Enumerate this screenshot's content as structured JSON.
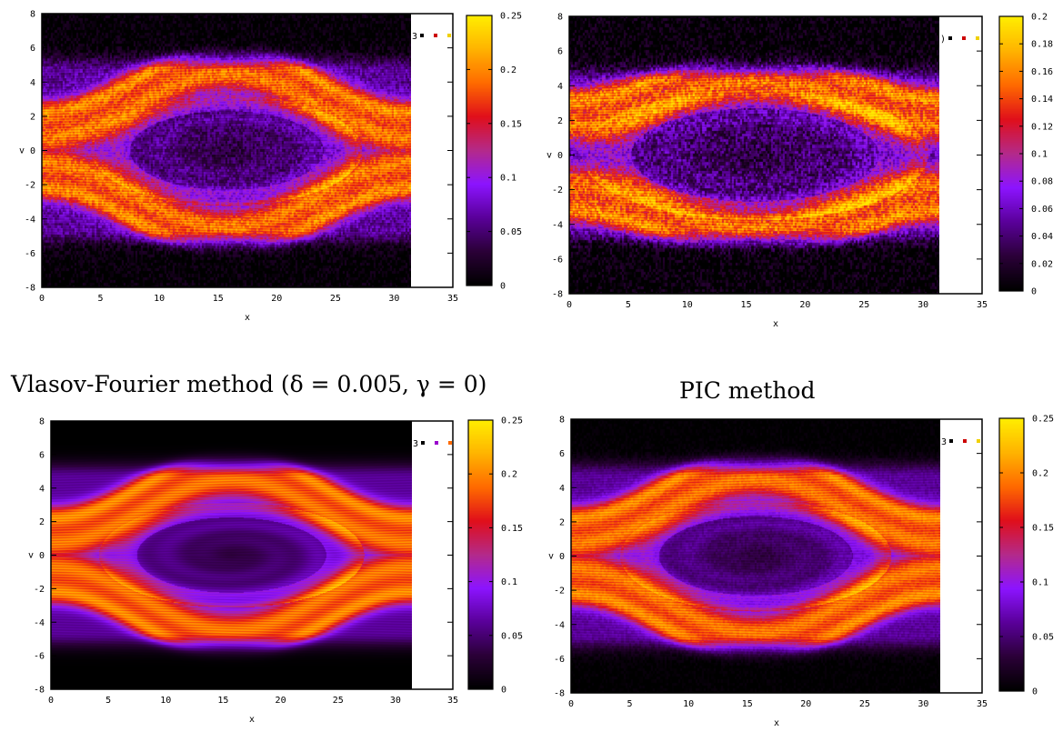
{
  "captions": {
    "bottom_left": "Vlasov-Fourier method (δ = 0.005, γ = 0)",
    "bottom_right": "PIC method"
  },
  "colors": {
    "colormap": [
      "#000000",
      "#2b0038",
      "#5a009a",
      "#8c14ff",
      "#b42a8a",
      "#e00f1b",
      "#ff6a00",
      "#ffb300",
      "#ffee00"
    ],
    "frame": "#000000",
    "legend_keys_black": "#000000",
    "legend_keys_red": "#cc0000",
    "legend_keys_yellow": "#f0d000",
    "legend_keys_purple": "#9900cc",
    "legend_keys_orange": "#ff6a00"
  },
  "chart_data": [
    {
      "type": "heatmap",
      "panel": "top-left",
      "title": "",
      "xlabel": "x",
      "ylabel": "v",
      "xlim": [
        0,
        35
      ],
      "ylim": [
        -8,
        8
      ],
      "xticks": [
        "0",
        "5",
        "10",
        "15",
        "20",
        "25",
        "30",
        "35"
      ],
      "yticks": [
        "-8",
        "-6",
        "-4",
        "-2",
        "0",
        "2",
        "4",
        "6",
        "8"
      ],
      "data_extent_x": [
        0,
        31.4
      ],
      "colorbar_range": [
        0,
        0.25
      ],
      "colorbar_ticks": [
        "0",
        "0.05",
        "0.1",
        "0.15",
        "0.2",
        "0.25"
      ],
      "legend_stub": "3",
      "legend_key_colors": [
        "black",
        "red",
        "yellow"
      ],
      "field": {
        "eye_center": [
          15.7,
          0
        ],
        "eye_rx": 11,
        "eye_rv": 3.1,
        "band_v": 2.6,
        "band_amp": 1.9,
        "bg_v": 4.6,
        "peak": 0.22,
        "noise": 0.35
      }
    },
    {
      "type": "heatmap",
      "panel": "top-right",
      "title": "",
      "xlabel": "x",
      "ylabel": "v",
      "xlim": [
        0,
        35
      ],
      "ylim": [
        -8,
        8
      ],
      "xticks": [
        "0",
        "5",
        "10",
        "15",
        "20",
        "25",
        "30",
        "35"
      ],
      "yticks": [
        "-8",
        "-6",
        "-4",
        "-2",
        "0",
        "2",
        "4",
        "6",
        "8"
      ],
      "data_extent_x": [
        0,
        31.4
      ],
      "colorbar_range": [
        0,
        0.2
      ],
      "colorbar_ticks": [
        "0",
        "0.02",
        "0.04",
        "0.06",
        "0.08",
        "0.1",
        "0.12",
        "0.14",
        "0.16",
        "0.18",
        "0.2"
      ],
      "legend_stub": ")",
      "legend_key_colors": [
        "black",
        "red",
        "yellow"
      ],
      "field": {
        "eye_center": [
          15.7,
          0
        ],
        "eye_rx": 14,
        "eye_rv": 3.6,
        "band_v": 3.0,
        "band_amp": 1.3,
        "bg_v": 4.2,
        "peak": 0.19,
        "noise": 0.5
      }
    },
    {
      "type": "heatmap",
      "panel": "bottom-left",
      "title": "",
      "xlabel": "x",
      "ylabel": "v",
      "xlim": [
        0,
        35
      ],
      "ylim": [
        -8,
        8
      ],
      "xticks": [
        "0",
        "5",
        "10",
        "15",
        "20",
        "25",
        "30",
        "35"
      ],
      "yticks": [
        "-8",
        "-6",
        "-4",
        "-2",
        "0",
        "2",
        "4",
        "6",
        "8"
      ],
      "data_extent_x": [
        0,
        31.4
      ],
      "colorbar_range": [
        0,
        0.25
      ],
      "colorbar_ticks": [
        "0",
        "0.05",
        "0.1",
        "0.15",
        "0.2",
        "0.25"
      ],
      "legend_stub": "3",
      "legend_key_colors": [
        "black",
        "purple",
        "orange"
      ],
      "field": {
        "eye_center": [
          15.7,
          0
        ],
        "eye_rx": 11,
        "eye_rv": 3.0,
        "band_v": 2.6,
        "band_amp": 1.9,
        "bg_v": 4.6,
        "peak": 0.2,
        "noise": 0.0
      }
    },
    {
      "type": "heatmap",
      "panel": "bottom-right",
      "title": "",
      "xlabel": "x",
      "ylabel": "v",
      "xlim": [
        0,
        35
      ],
      "ylim": [
        -8,
        8
      ],
      "xticks": [
        "0",
        "5",
        "10",
        "15",
        "20",
        "25",
        "30",
        "35"
      ],
      "yticks": [
        "-8",
        "-6",
        "-4",
        "-2",
        "0",
        "2",
        "4",
        "6",
        "8"
      ],
      "data_extent_x": [
        0,
        31.4
      ],
      "colorbar_range": [
        0,
        0.25
      ],
      "colorbar_ticks": [
        "0",
        "0.05",
        "0.1",
        "0.15",
        "0.2",
        "0.25"
      ],
      "legend_stub": "3",
      "legend_key_colors": [
        "black",
        "red",
        "yellow"
      ],
      "field": {
        "eye_center": [
          15.7,
          0
        ],
        "eye_rx": 11,
        "eye_rv": 3.1,
        "band_v": 2.6,
        "band_amp": 1.9,
        "bg_v": 4.6,
        "peak": 0.2,
        "noise": 0.12
      }
    }
  ]
}
